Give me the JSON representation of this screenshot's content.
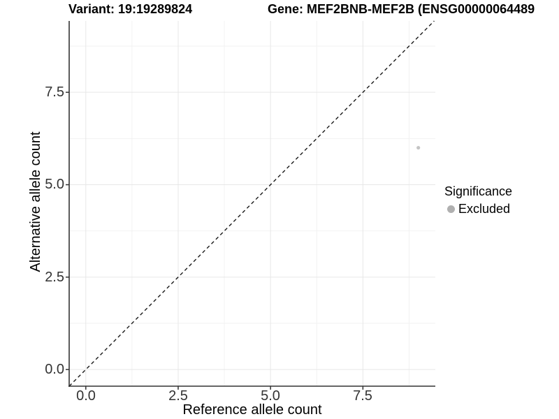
{
  "header": {
    "variant_title": "Variant: 19:19289824",
    "gene_title": "Gene: MEF2BNB-MEF2B (ENSG00000064489"
  },
  "chart_data": {
    "type": "scatter",
    "titles": {
      "left": "Variant: 19:19289824",
      "right": "Gene: MEF2BNB-MEF2B (ENSG00000064489"
    },
    "xlabel": "Reference allele count",
    "ylabel": "Alternative allele count",
    "xlim": [
      -0.45,
      9.46
    ],
    "ylim": [
      -0.45,
      9.43
    ],
    "x_ticks": {
      "values": [
        0,
        2.5,
        5,
        7.5
      ],
      "labels": [
        "0.0",
        "2.5",
        "5.0",
        "7.5"
      ]
    },
    "y_ticks": {
      "values": [
        0,
        2.5,
        5,
        7.5
      ],
      "labels": [
        "0.0",
        "2.5",
        "5.0",
        "7.5"
      ]
    },
    "minor_ticks": [
      1.25,
      3.75,
      6.25,
      8.75
    ],
    "grid": true,
    "series": [
      {
        "name": "Excluded",
        "color": "#c4c4c4",
        "points": [
          {
            "x": 9,
            "y": 6
          }
        ]
      }
    ],
    "reference_line": {
      "type": "identity",
      "slope": 1,
      "intercept": 0,
      "style": "dashed",
      "color": "#1a1a1a"
    },
    "legend": {
      "title": "Significance",
      "position": "right",
      "entries": [
        {
          "label": "Excluded",
          "marker_color": "#b0b0b0"
        }
      ]
    }
  },
  "colors": {
    "background": "#ffffff",
    "grid_major": "#e7e7e7",
    "grid_minor": "#f2f2f2",
    "axis_line": "#333333",
    "tick_mark": "#333333",
    "tick_text": "#333333",
    "point": "#c4c4c4",
    "legend_marker": "#b0b0b0",
    "reference_line": "#1a1a1a"
  }
}
